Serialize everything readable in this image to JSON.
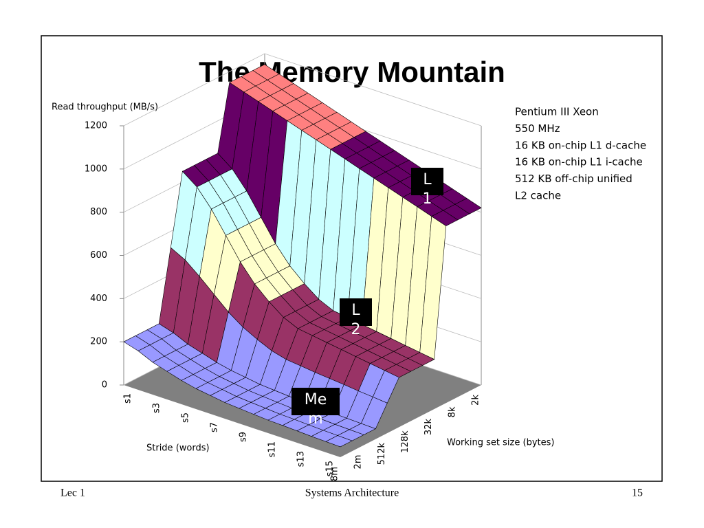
{
  "chart_data": {
    "type": "surface",
    "title": "The Memory Mountain",
    "z_label": "Read throughput (MB/s)",
    "x_label": "Stride (words)",
    "y_label": "Working set size (bytes)",
    "strides": [
      "s1",
      null,
      "s3",
      null,
      "s5",
      null,
      "s7",
      null,
      "s9",
      null,
      "s11",
      null,
      "s13",
      null,
      "s15",
      null
    ],
    "sizes": [
      "2k",
      null,
      "8k",
      null,
      "32k",
      null,
      "128k",
      null,
      "512k",
      null,
      "2m",
      null,
      "8m"
    ],
    "values": [
      [
        1150,
        1150,
        1150,
        1150,
        850,
        850,
        850,
        850,
        525,
        200,
        200,
        200,
        200
      ],
      [
        1128,
        1128,
        1128,
        1128,
        800,
        800,
        800,
        800,
        490,
        180,
        180,
        180,
        180
      ],
      [
        1106,
        1106,
        1106,
        1106,
        720,
        720,
        720,
        720,
        435,
        150,
        150,
        150,
        150
      ],
      [
        1084,
        1084,
        1084,
        1084,
        620,
        620,
        620,
        620,
        375,
        130,
        130,
        130,
        130
      ],
      [
        1062,
        1062,
        1062,
        1062,
        520,
        520,
        520,
        520,
        315,
        110,
        110,
        110,
        110
      ],
      [
        1040,
        1040,
        1040,
        1040,
        440,
        440,
        440,
        440,
        268,
        95,
        95,
        95,
        95
      ],
      [
        1018,
        1018,
        1018,
        1018,
        380,
        380,
        380,
        380,
        233,
        85,
        85,
        85,
        85
      ],
      [
        996,
        996,
        996,
        996,
        330,
        330,
        330,
        330,
        203,
        75,
        75,
        75,
        75
      ],
      [
        974,
        974,
        974,
        974,
        300,
        300,
        300,
        300,
        185,
        70,
        70,
        70,
        70
      ],
      [
        952,
        952,
        952,
        952,
        290,
        290,
        290,
        290,
        178,
        65,
        65,
        65,
        65
      ],
      [
        930,
        930,
        930,
        930,
        280,
        280,
        280,
        280,
        170,
        60,
        60,
        60,
        60
      ],
      [
        908,
        908,
        908,
        908,
        270,
        270,
        270,
        270,
        164,
        58,
        58,
        58,
        58
      ],
      [
        886,
        886,
        886,
        886,
        260,
        260,
        260,
        260,
        158,
        55,
        55,
        55,
        55
      ],
      [
        864,
        864,
        864,
        864,
        250,
        250,
        250,
        250,
        151,
        52,
        52,
        52,
        52
      ],
      [
        842,
        842,
        842,
        842,
        240,
        240,
        240,
        240,
        145,
        50,
        50,
        50,
        50
      ],
      [
        820,
        820,
        820,
        820,
        230,
        230,
        230,
        230,
        139,
        48,
        48,
        48,
        48
      ]
    ],
    "zlim": [
      0,
      1200
    ],
    "zticks": [
      0,
      200,
      400,
      600,
      800,
      1000,
      1200
    ],
    "band_colors": [
      "#9999ff",
      "#993366",
      "#ffffcc",
      "#ccffff",
      "#660066",
      "#ff8080"
    ],
    "floor_color": "#808080",
    "annotations": [
      "L1",
      "L2",
      "Mem"
    ],
    "notes": [
      "Pentium III Xeon",
      "550 MHz",
      "16 KB on-chip L1 d-cache",
      "16 KB on-chip L1 i-cache",
      "512 KB  off-chip unified",
      "L2 cache"
    ]
  },
  "footer": {
    "left": "Lec 1",
    "center": "Systems Architecture",
    "right": "15"
  }
}
